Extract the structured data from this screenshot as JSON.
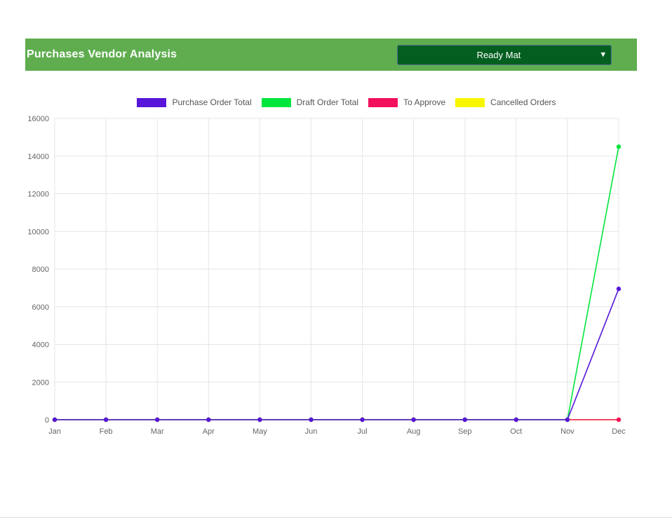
{
  "header": {
    "title": "Purchases Vendor Analysis",
    "vendor_select": {
      "value": "Ready Mat"
    }
  },
  "colors": {
    "header_bg": "#5fad4f",
    "select_bg": "#035f20",
    "select_border": "#51718f",
    "axis_text": "#666666",
    "grid": "#e5e5e5",
    "legend_text": "#555555"
  },
  "chart_data": {
    "type": "line",
    "title": "Purchases Vendor Analysis",
    "categories": [
      "Jan",
      "Feb",
      "Mar",
      "Apr",
      "May",
      "Jun",
      "Jul",
      "Aug",
      "Sep",
      "Oct",
      "Nov",
      "Dec"
    ],
    "series": [
      {
        "name": "Purchase Order Total",
        "color": "#5716d9",
        "values": [
          0,
          0,
          0,
          0,
          0,
          0,
          0,
          0,
          0,
          0,
          0,
          6950
        ]
      },
      {
        "name": "Draft Order Total",
        "color": "#00e63d",
        "values": [
          0,
          0,
          0,
          0,
          0,
          0,
          0,
          0,
          0,
          0,
          0,
          14500
        ]
      },
      {
        "name": "To Approve",
        "color": "#f3105c",
        "values": [
          0,
          0,
          0,
          0,
          0,
          0,
          0,
          0,
          0,
          0,
          0,
          0
        ]
      },
      {
        "name": "Cancelled Orders",
        "color": "#f7f600",
        "values": [
          0,
          0,
          0,
          0,
          0,
          0,
          0,
          0,
          0,
          0,
          0,
          0
        ]
      }
    ],
    "xlabel": "",
    "ylabel": "",
    "ylim": [
      0,
      16000
    ],
    "ytick_step": 2000,
    "grid": true,
    "legend_position": "top"
  }
}
